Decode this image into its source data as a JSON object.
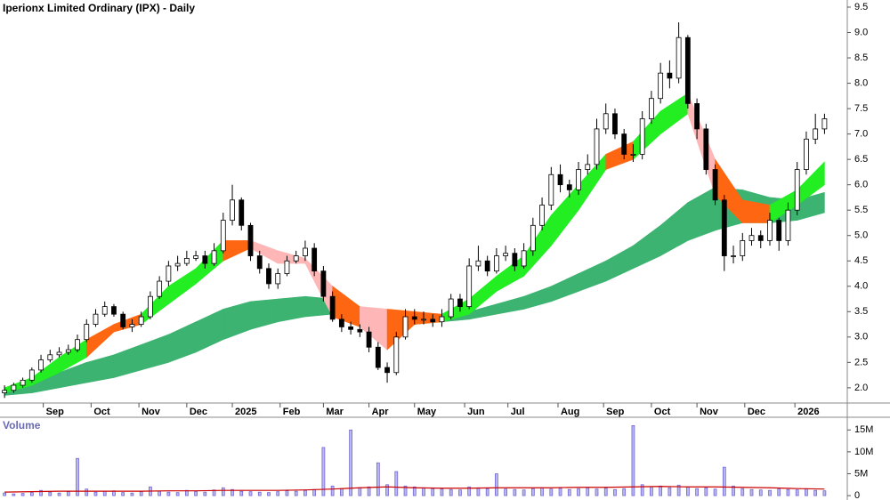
{
  "chart_data": [
    {
      "type": "candlestick",
      "title": "Iperionx Limited Ordinary (IPX) - Daily",
      "x": [
        0,
        4,
        8,
        12,
        16,
        20,
        24,
        28,
        32,
        36,
        40,
        44,
        48,
        52,
        56,
        60,
        64,
        68,
        72,
        76,
        80,
        84,
        88,
        92,
        96,
        100,
        104,
        108,
        112,
        116,
        120,
        124,
        128,
        132,
        136,
        140,
        144,
        148,
        152,
        156,
        160,
        164,
        168,
        172,
        176,
        180,
        184,
        188,
        192,
        196,
        200,
        204,
        208,
        212,
        216,
        220,
        224,
        228,
        232,
        236,
        240,
        244,
        248,
        252,
        256,
        260,
        264,
        268,
        272,
        276,
        280,
        284,
        288,
        292,
        296,
        300,
        304,
        308,
        312,
        316,
        320,
        324,
        328,
        332,
        336,
        340,
        344,
        348,
        352,
        356,
        360
      ],
      "open": [
        1.9,
        1.95,
        2.05,
        2.15,
        2.35,
        2.55,
        2.65,
        2.7,
        2.75,
        2.95,
        3.25,
        3.45,
        3.6,
        3.45,
        3.2,
        3.25,
        3.4,
        3.8,
        4.1,
        4.4,
        4.45,
        4.55,
        4.6,
        4.45,
        4.7,
        5.3,
        5.7,
        5.2,
        4.6,
        4.35,
        4.05,
        4.25,
        4.5,
        4.6,
        4.75,
        4.3,
        3.8,
        3.35,
        3.2,
        3.15,
        3.1,
        2.8,
        2.4,
        2.3,
        3.0,
        3.4,
        3.35,
        3.35,
        3.3,
        3.4,
        3.75,
        3.6,
        4.4,
        4.5,
        4.3,
        4.6,
        4.65,
        4.4,
        4.7,
        5.2,
        5.6,
        6.2,
        6.0,
        5.9,
        6.3,
        6.4,
        7.1,
        7.4,
        7.0,
        6.6,
        6.6,
        7.3,
        7.7,
        8.2,
        8.1,
        8.9,
        7.6,
        7.1,
        6.3,
        5.7,
        4.6,
        4.6,
        4.9,
        5.0,
        4.9,
        5.3,
        4.9,
        5.5,
        6.3,
        6.9,
        7.1
      ],
      "high": [
        2.05,
        2.1,
        2.2,
        2.4,
        2.65,
        2.75,
        2.8,
        2.85,
        3.05,
        3.35,
        3.55,
        3.7,
        3.65,
        3.5,
        3.35,
        3.5,
        3.9,
        4.2,
        4.5,
        4.6,
        4.7,
        4.7,
        4.7,
        4.85,
        5.45,
        6.0,
        5.75,
        5.25,
        4.7,
        4.45,
        4.35,
        4.6,
        4.7,
        4.9,
        4.85,
        4.4,
        3.9,
        3.45,
        3.3,
        3.25,
        3.2,
        2.9,
        2.5,
        3.1,
        3.55,
        3.55,
        3.5,
        3.45,
        3.55,
        3.85,
        3.85,
        4.55,
        4.8,
        4.6,
        4.75,
        4.8,
        4.75,
        4.85,
        5.35,
        5.75,
        6.35,
        6.4,
        6.1,
        6.45,
        6.6,
        7.3,
        7.6,
        7.5,
        7.1,
        6.8,
        7.45,
        7.85,
        8.4,
        8.45,
        9.2,
        8.95,
        7.7,
        7.2,
        6.4,
        5.8,
        4.8,
        5.05,
        5.15,
        5.1,
        5.45,
        5.35,
        5.65,
        6.45,
        7.05,
        7.4,
        7.4
      ],
      "low": [
        1.8,
        1.9,
        2.0,
        2.1,
        2.3,
        2.5,
        2.6,
        2.65,
        2.7,
        2.9,
        3.2,
        3.4,
        3.4,
        3.15,
        3.1,
        3.2,
        3.35,
        3.75,
        4.0,
        4.3,
        4.4,
        4.5,
        4.35,
        4.4,
        4.65,
        5.2,
        5.1,
        4.5,
        4.25,
        3.95,
        3.95,
        4.2,
        4.45,
        4.5,
        4.2,
        3.7,
        3.3,
        3.1,
        3.05,
        3.0,
        2.7,
        2.35,
        2.1,
        2.25,
        2.95,
        3.25,
        3.25,
        3.2,
        3.2,
        3.35,
        3.5,
        3.55,
        4.3,
        4.2,
        4.25,
        4.5,
        4.3,
        4.35,
        4.6,
        5.1,
        5.5,
        5.85,
        5.75,
        5.8,
        6.2,
        6.3,
        7.0,
        6.9,
        6.5,
        6.45,
        6.5,
        7.2,
        7.6,
        7.9,
        8.0,
        7.5,
        6.9,
        6.2,
        5.6,
        4.3,
        4.45,
        4.5,
        4.8,
        4.75,
        4.8,
        4.7,
        4.8,
        5.4,
        6.2,
        6.8,
        7.0
      ],
      "close": [
        1.95,
        2.05,
        2.15,
        2.35,
        2.55,
        2.65,
        2.7,
        2.75,
        2.95,
        3.25,
        3.45,
        3.6,
        3.45,
        3.2,
        3.25,
        3.4,
        3.8,
        4.1,
        4.4,
        4.45,
        4.55,
        4.6,
        4.45,
        4.7,
        5.3,
        5.7,
        5.2,
        4.6,
        4.35,
        4.05,
        4.25,
        4.5,
        4.6,
        4.75,
        4.3,
        3.8,
        3.35,
        3.2,
        3.15,
        3.1,
        2.8,
        2.4,
        2.3,
        3.0,
        3.4,
        3.35,
        3.35,
        3.3,
        3.4,
        3.75,
        3.6,
        4.4,
        4.5,
        4.3,
        4.6,
        4.65,
        4.4,
        4.7,
        5.2,
        5.6,
        6.2,
        6.0,
        5.9,
        6.3,
        6.4,
        7.1,
        7.4,
        7.0,
        6.6,
        6.6,
        7.3,
        7.7,
        8.2,
        8.1,
        8.9,
        7.6,
        7.1,
        6.3,
        5.7,
        4.6,
        4.6,
        4.9,
        5.0,
        4.9,
        5.3,
        4.9,
        5.5,
        6.3,
        6.9,
        7.1,
        7.3
      ],
      "color_up": "#ffffff",
      "color_down": "#000000",
      "xlim": [
        -2,
        370
      ],
      "xticks": [
        {
          "value": 17,
          "label": "Sep"
        },
        {
          "value": 38,
          "label": "Oct"
        },
        {
          "value": 59,
          "label": "Nov"
        },
        {
          "value": 80,
          "label": "Dec"
        },
        {
          "value": 100,
          "label": "2025"
        },
        {
          "value": 121,
          "label": "Feb"
        },
        {
          "value": 140,
          "label": "Mar"
        },
        {
          "value": 160,
          "label": "Apr"
        },
        {
          "value": 180,
          "label": "May"
        },
        {
          "value": 202,
          "label": "Jun"
        },
        {
          "value": 221,
          "label": "Jul"
        },
        {
          "value": 243,
          "label": "Aug"
        },
        {
          "value": 263,
          "label": "Sep"
        },
        {
          "value": 284,
          "label": "Oct"
        },
        {
          "value": 304,
          "label": "Nov"
        },
        {
          "value": 325,
          "label": "Dec"
        },
        {
          "value": 347,
          "label": "2026"
        }
      ],
      "ylim": [
        1.7,
        9.64
      ],
      "yticks": [
        {
          "value": 2,
          "label": "2.0"
        },
        2.5,
        {
          "value": 3,
          "label": "3.0"
        },
        3.5,
        {
          "value": 4,
          "label": "4.0"
        },
        4.5,
        {
          "value": 5,
          "label": "5.0"
        },
        5.5,
        {
          "value": 6,
          "label": "6.0"
        },
        6.5,
        {
          "value": 7,
          "label": "7.0"
        },
        7.5,
        {
          "value": 8,
          "label": "8.0"
        },
        8.5,
        {
          "value": 9,
          "label": "9.0"
        },
        9.5
      ],
      "bands": [
        {
          "x": [
            0,
            12,
            24,
            36,
            48,
            60,
            72,
            84,
            96,
            108,
            120,
            132,
            144,
            156,
            168,
            180,
            192,
            204,
            216,
            228,
            240,
            252,
            264,
            276,
            288,
            300,
            312,
            324,
            336,
            348,
            360
          ],
          "upper": [
            2.0,
            2.1,
            2.3,
            2.5,
            2.65,
            2.85,
            3.05,
            3.3,
            3.55,
            3.7,
            3.75,
            3.8,
            3.75,
            3.6,
            3.5,
            3.4,
            3.4,
            3.5,
            3.65,
            3.8,
            4.0,
            4.25,
            4.5,
            4.8,
            5.2,
            5.65,
            5.95,
            5.9,
            5.75,
            5.7,
            5.85
          ],
          "lower": [
            1.85,
            1.9,
            2.0,
            2.1,
            2.2,
            2.35,
            2.5,
            2.7,
            2.95,
            3.15,
            3.3,
            3.4,
            3.45,
            3.4,
            3.3,
            3.25,
            3.3,
            3.35,
            3.45,
            3.55,
            3.7,
            3.9,
            4.1,
            4.35,
            4.6,
            4.9,
            5.1,
            5.25,
            5.25,
            5.3,
            5.45
          ],
          "color": "#3cb371"
        },
        {
          "x": [
            0,
            12,
            24,
            36,
            48,
            60,
            72,
            84,
            96,
            108,
            120,
            132,
            144,
            156,
            168,
            180,
            192,
            204,
            216,
            228,
            240,
            252,
            264,
            276,
            288,
            300,
            312,
            324,
            336,
            348,
            360
          ],
          "upper": [
            2.0,
            2.2,
            2.6,
            2.95,
            3.25,
            3.45,
            4.0,
            4.35,
            4.9,
            4.9,
            4.7,
            4.55,
            4.0,
            3.6,
            3.55,
            3.5,
            3.45,
            3.75,
            4.2,
            4.6,
            5.4,
            6.0,
            6.6,
            6.85,
            7.45,
            7.8,
            6.5,
            5.7,
            5.6,
            5.9,
            6.45
          ],
          "lower": [
            1.9,
            2.05,
            2.3,
            2.6,
            3.1,
            3.25,
            3.65,
            4.05,
            4.5,
            4.75,
            4.45,
            4.45,
            3.4,
            3.2,
            2.75,
            3.25,
            3.3,
            3.45,
            3.9,
            4.2,
            4.8,
            5.5,
            6.3,
            6.5,
            7.0,
            7.4,
            5.8,
            5.25,
            5.25,
            5.6,
            6.0
          ],
          "segment_colors": [
            "#22ee22",
            "#22ee22",
            "#22ee22",
            "#ff6611",
            "#ff6611",
            "#22ee22",
            "#22ee22",
            "#22ee22",
            "#ff6611",
            "#ffb6b6",
            "#ffb6b6",
            "#ffb6b6",
            "#ff6611",
            "#ffb6b6",
            "#ff6611",
            "#ff6611",
            "#22ee22",
            "#22ee22",
            "#22ee22",
            "#22ee22",
            "#22ee22",
            "#22ee22",
            "#ff6611",
            "#22ee22",
            "#22ee22",
            "#ffb6b6",
            "#ff6611",
            "#ff6611",
            "#22ee22",
            "#22ee22"
          ]
        }
      ]
    },
    {
      "type": "bar",
      "title": "Volume",
      "values": [
        0.6,
        0.4,
        0.5,
        0.7,
        1.2,
        0.8,
        0.6,
        0.9,
        8.5,
        1.5,
        0.8,
        1.0,
        1.1,
        0.7,
        0.6,
        0.9,
        2.0,
        1.0,
        0.8,
        0.7,
        1.2,
        0.9,
        0.8,
        1.3,
        1.8,
        1.4,
        1.0,
        0.9,
        0.8,
        0.7,
        0.9,
        1.1,
        1.0,
        1.2,
        1.4,
        11.0,
        2.2,
        1.6,
        15.0,
        1.8,
        2.0,
        7.5,
        2.5,
        5.5,
        2.2,
        2.0,
        1.8,
        1.6,
        1.5,
        1.4,
        1.3,
        2.0,
        1.8,
        1.6,
        5.0,
        1.5,
        1.4,
        1.3,
        1.6,
        1.8,
        1.5,
        1.7,
        1.4,
        1.6,
        1.8,
        1.5,
        1.7,
        1.4,
        1.6,
        16.0,
        2.5,
        2.0,
        2.2,
        1.8,
        2.4,
        2.0,
        1.6,
        1.8,
        1.5,
        6.5,
        2.2,
        1.6,
        1.4,
        1.3,
        1.2,
        1.5,
        1.4,
        1.3,
        1.6,
        1.2,
        1.1
      ],
      "color": "#6a5acd",
      "ylim": [
        -1,
        17.9
      ],
      "yticks": [
        0,
        {
          "value": 5,
          "label": "5M"
        },
        {
          "value": 10,
          "label": "10M"
        },
        {
          "value": 15,
          "label": "15M"
        }
      ],
      "ma": {
        "x": [
          0,
          12,
          24,
          36,
          48,
          60,
          72,
          84,
          96,
          108,
          120,
          132,
          144,
          156,
          168,
          180,
          192,
          204,
          216,
          228,
          240,
          252,
          264,
          276,
          288,
          300,
          312,
          324,
          336,
          348,
          360
        ],
        "values": [
          0.8,
          0.9,
          1.0,
          1.0,
          1.0,
          1.0,
          1.1,
          1.1,
          1.2,
          1.2,
          1.2,
          1.3,
          1.5,
          1.8,
          2.0,
          1.8,
          1.7,
          1.7,
          1.8,
          1.8,
          1.8,
          1.9,
          1.9,
          2.0,
          2.1,
          2.0,
          2.0,
          1.9,
          1.8,
          1.6,
          1.5
        ],
        "color": "#cc0000"
      }
    }
  ]
}
